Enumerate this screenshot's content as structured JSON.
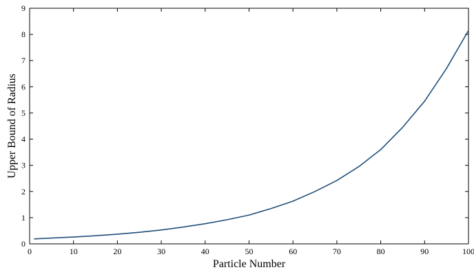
{
  "chart_data": {
    "type": "line",
    "title": "",
    "xlabel": "Particle Number",
    "ylabel": "Upper Bound of Radius",
    "xlim": [
      0,
      100
    ],
    "ylim": [
      0,
      9
    ],
    "xticks": [
      0,
      10,
      20,
      30,
      40,
      50,
      60,
      70,
      80,
      90,
      100
    ],
    "yticks": [
      0,
      1,
      2,
      3,
      4,
      5,
      6,
      7,
      8,
      9
    ],
    "xtick_labels": [
      "0",
      "10",
      "20",
      "30",
      "40",
      "50",
      "60",
      "70",
      "80",
      "90",
      "100"
    ],
    "ytick_labels": [
      "0",
      "1",
      "2",
      "3",
      "4",
      "5",
      "6",
      "7",
      "8",
      "9"
    ],
    "grid": false,
    "line_color": "#1f4e79",
    "series": [
      {
        "x": [
          1,
          5,
          10,
          15,
          20,
          25,
          30,
          35,
          40,
          45,
          50,
          55,
          60,
          65,
          70,
          75,
          80,
          85,
          90,
          95,
          100
        ],
        "y": [
          0.19,
          0.22,
          0.26,
          0.31,
          0.37,
          0.44,
          0.53,
          0.64,
          0.77,
          0.92,
          1.1,
          1.35,
          1.63,
          2.0,
          2.42,
          2.95,
          3.6,
          4.45,
          5.45,
          6.7,
          8.15
        ]
      }
    ]
  }
}
